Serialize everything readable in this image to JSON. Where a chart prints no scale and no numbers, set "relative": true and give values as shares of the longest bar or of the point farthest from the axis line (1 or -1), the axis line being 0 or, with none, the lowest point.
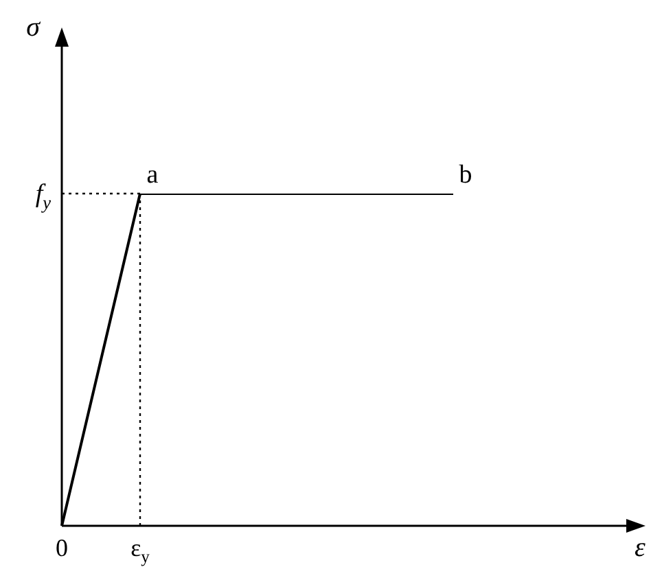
{
  "chart_data": {
    "type": "line",
    "relative": true,
    "xlabel": "ε",
    "categories": [
      "0",
      "ε$_{y}$",
      null,
      null,
      null,
      null,
      null,
      null
    ],
    "values": [
      0,
      1,
      1,
      1,
      1,
      1,
      null,
      null
    ],
    "color": "#000000",
    "ref_lines": [
      {
        "axis": "x",
        "value": "ε$_{y}$",
        "line_style": "dotted",
        "color": "#000000"
      },
      {
        "axis": "y",
        "value": 1,
        "label": "f$_{y}$",
        "line_style": "dotted",
        "color": "#000000"
      }
    ],
    "annotations": [
      "σ",
      {
        "text": "a",
        "x": "ε$_{y}$",
        "y": 1
      },
      "b"
    ],
    "legend": false,
    "marker": "none",
    "line_style": "solid"
  }
}
